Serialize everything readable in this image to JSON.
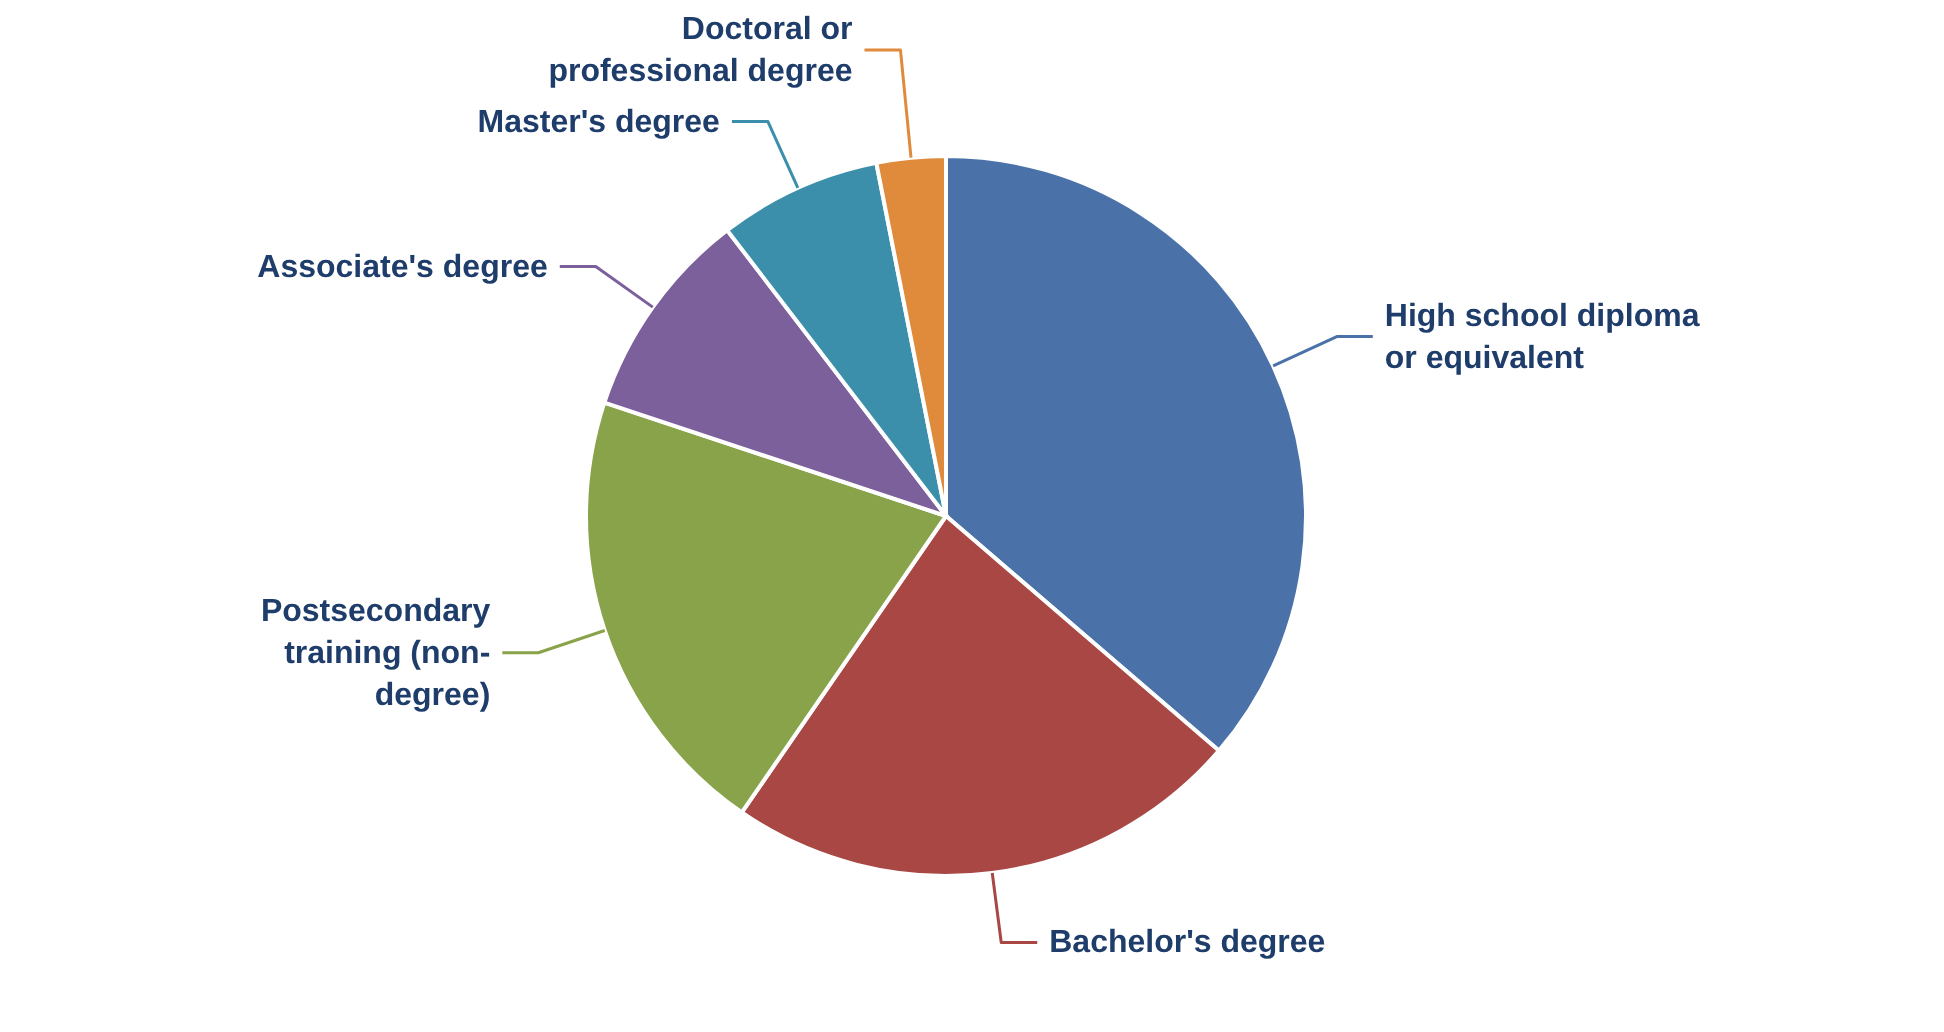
{
  "chart_data": {
    "type": "pie",
    "categories": [
      "High school diploma or equivalent",
      "Bachelor's degree",
      "Postsecondary training (non-degree)",
      "Associate's degree",
      "Master's degree",
      "Doctoral or professional degree"
    ],
    "values": [
      36.3,
      23.3,
      20.5,
      9.5,
      7.3,
      3.1
    ],
    "colors": [
      "#4a72a8",
      "#a84744",
      "#88a34a",
      "#7b609b",
      "#3c8faa",
      "#e08a3c"
    ]
  }
}
